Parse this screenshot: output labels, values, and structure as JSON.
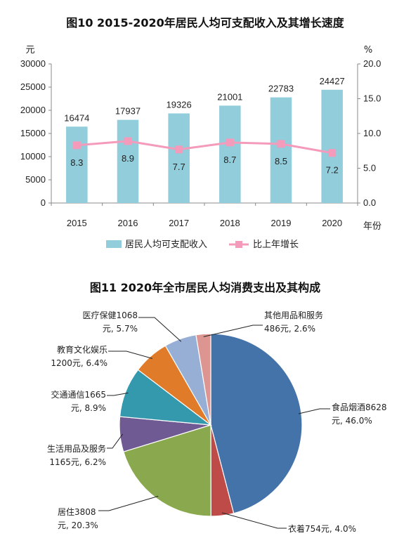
{
  "chart_data": [
    {
      "type": "bar",
      "title": "图10  2015-2020年居民人均可支配收入及其增长速度",
      "categories": [
        "2015",
        "2016",
        "2017",
        "2018",
        "2019",
        "2020"
      ],
      "xlabel": "年份",
      "ylabel_left": "元",
      "ylabel_right": "%",
      "ylim_left": [
        0,
        30000
      ],
      "ylim_right": [
        0,
        20
      ],
      "yticks_left": [
        "0",
        "5000",
        "10000",
        "15000",
        "20000",
        "25000",
        "30000"
      ],
      "yticks_right": [
        "0.0",
        "5.0",
        "10.0",
        "15.0",
        "20.0"
      ],
      "series": [
        {
          "name": "居民人均可支配收入",
          "type": "bar",
          "axis": "left",
          "color": "#92cddc",
          "values": [
            16474,
            17937,
            19326,
            21001,
            22783,
            24427
          ]
        },
        {
          "name": "比上年增长",
          "type": "line",
          "axis": "right",
          "color": "#f49bbb",
          "values": [
            8.3,
            8.9,
            7.7,
            8.7,
            8.5,
            7.2
          ]
        }
      ],
      "growth_labels": [
        "8.3",
        "8.9",
        "7.7",
        "8.7",
        "8.5",
        "7.2"
      ],
      "value_labels": [
        "16474",
        "17937",
        "19326",
        "21001",
        "22783",
        "24427"
      ],
      "legend_position": "bottom",
      "grid": false
    },
    {
      "type": "pie",
      "title": "图11  2020年全市居民人均消费支出及其构成",
      "slices": [
        {
          "name": "食品烟酒",
          "value": 8628,
          "percent": 46.0,
          "color": "#4473a9",
          "line1": "食品烟酒8628",
          "line2": "元, 46.0%"
        },
        {
          "name": "衣着",
          "value": 754,
          "percent": 4.0,
          "color": "#be4b48",
          "line1": "衣着754元, 4.0%",
          "line2": ""
        },
        {
          "name": "居住",
          "value": 3808,
          "percent": 20.3,
          "color": "#8aa94e",
          "line1": "居住3808",
          "line2": "元, 20.3%"
        },
        {
          "name": "生活用品及服务",
          "value": 1165,
          "percent": 6.2,
          "color": "#705a94",
          "line1": "生活用品及服务",
          "line2": "1165元, 6.2%"
        },
        {
          "name": "交通通信",
          "value": 1665,
          "percent": 8.9,
          "color": "#3499ad",
          "line1": "交通通信1665",
          "line2": "元, 8.9%"
        },
        {
          "name": "教育文化娱乐",
          "value": 1200,
          "percent": 6.4,
          "color": "#e07b2a",
          "line1": "教育文化娱乐",
          "line2": "1200元, 6.4%"
        },
        {
          "name": "医疗保健",
          "value": 1068,
          "percent": 5.7,
          "color": "#97afd4",
          "line1": "医疗保健1068",
          "line2": "元, 5.7%"
        },
        {
          "name": "其他用品和服务",
          "value": 486,
          "percent": 2.6,
          "color": "#dd9592",
          "line1": "其他用品和服务",
          "line2": "486元, 2.6%"
        }
      ]
    }
  ]
}
